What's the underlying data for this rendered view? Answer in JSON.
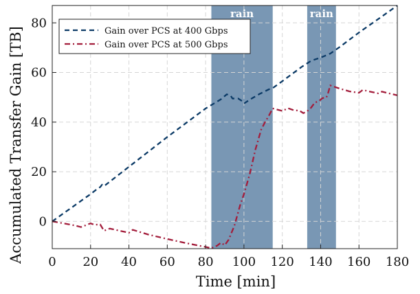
{
  "chart_data": {
    "type": "line",
    "title": "",
    "xlabel": "Time [min]",
    "ylabel": "Accumulated Transfer Gain [TB]",
    "xlim": [
      0,
      180
    ],
    "ylim": [
      -11,
      87
    ],
    "xticks": [
      0,
      20,
      40,
      60,
      80,
      100,
      120,
      140,
      160,
      180
    ],
    "yticks": [
      0,
      20,
      40,
      60,
      80
    ],
    "grid": true,
    "legend_position": "top-left",
    "annotations": [
      {
        "label": "rain",
        "x_start": 83,
        "x_end": 115,
        "color": "#6f8fae"
      },
      {
        "label": "rain",
        "x_start": 133,
        "x_end": 148,
        "color": "#6f8fae"
      }
    ],
    "series": [
      {
        "name": "Gain over PCS at 400 Gbps",
        "color": "#0b3a66",
        "style": "dashed",
        "points": [
          [
            0,
            0
          ],
          [
            10,
            5.5
          ],
          [
            20,
            11
          ],
          [
            24,
            13.4
          ],
          [
            25,
            13.8
          ],
          [
            26,
            14.8
          ],
          [
            27,
            14.2
          ],
          [
            40,
            22
          ],
          [
            60,
            34
          ],
          [
            80,
            45.5
          ],
          [
            88,
            49.2
          ],
          [
            91,
            51.2
          ],
          [
            93,
            50.8
          ],
          [
            94,
            49.5
          ],
          [
            97,
            49.5
          ],
          [
            99,
            48.5
          ],
          [
            100,
            47.5
          ],
          [
            104,
            49.5
          ],
          [
            108,
            51.3
          ],
          [
            113,
            53.2
          ],
          [
            115,
            53.7
          ],
          [
            120,
            56.5
          ],
          [
            130,
            62.2
          ],
          [
            135,
            64.7
          ],
          [
            138,
            65.5
          ],
          [
            140,
            66
          ],
          [
            145,
            67.6
          ],
          [
            150,
            70.3
          ],
          [
            160,
            76.1
          ],
          [
            170,
            81.5
          ],
          [
            180,
            87
          ]
        ]
      },
      {
        "name": "Gain over PCS at 500 Gbps",
        "color": "#a31d3b",
        "style": "dashdot",
        "points": [
          [
            0,
            0
          ],
          [
            8,
            -1.1
          ],
          [
            12,
            -1.7
          ],
          [
            15,
            -2.3
          ],
          [
            18,
            -1.4
          ],
          [
            20,
            -0.8
          ],
          [
            22,
            -1.4
          ],
          [
            25,
            -1.2
          ],
          [
            27,
            -3.8
          ],
          [
            30,
            -2.9
          ],
          [
            40,
            -4.6
          ],
          [
            42,
            -3.4
          ],
          [
            50,
            -5.3
          ],
          [
            60,
            -7.1
          ],
          [
            70,
            -8.8
          ],
          [
            80,
            -10.3
          ],
          [
            83,
            -10.8
          ],
          [
            86,
            -9.8
          ],
          [
            88,
            -8.6
          ],
          [
            90,
            -9.6
          ],
          [
            92,
            -7.4
          ],
          [
            95,
            -1.8
          ],
          [
            98,
            6.5
          ],
          [
            100,
            11
          ],
          [
            103,
            19
          ],
          [
            106,
            29
          ],
          [
            109,
            37
          ],
          [
            111,
            40
          ],
          [
            113,
            42.6
          ],
          [
            115,
            45.5
          ],
          [
            120,
            44.5
          ],
          [
            123,
            45.6
          ],
          [
            126,
            44.8
          ],
          [
            129,
            44.6
          ],
          [
            131,
            43.6
          ],
          [
            133,
            44.4
          ],
          [
            135,
            45.8
          ],
          [
            137,
            47.9
          ],
          [
            139,
            48.4
          ],
          [
            141,
            49.7
          ],
          [
            143,
            49.9
          ],
          [
            144,
            52
          ],
          [
            145,
            54.8
          ],
          [
            150,
            53.5
          ],
          [
            155,
            52.4
          ],
          [
            160,
            51.8
          ],
          [
            162,
            53
          ],
          [
            165,
            52.4
          ],
          [
            170,
            51.6
          ],
          [
            172,
            52.3
          ],
          [
            175,
            51.7
          ],
          [
            180,
            50.8
          ]
        ]
      }
    ]
  }
}
